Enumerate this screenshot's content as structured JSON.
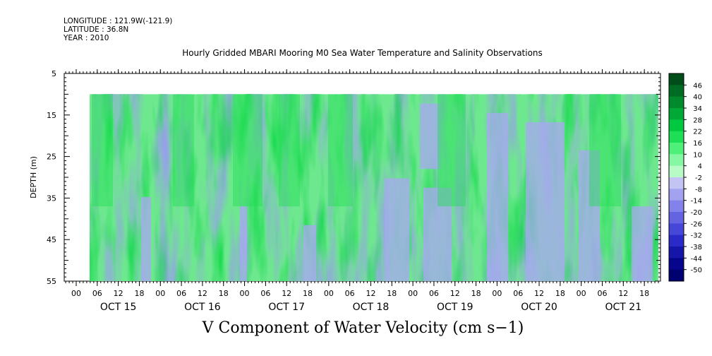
{
  "header": {
    "longitude": "LONGITUDE : 121.9W(-121.9)",
    "latitude": "LATITUDE : 36.8N",
    "year": "YEAR : 2010"
  },
  "chart_data": {
    "type": "heatmap",
    "title": "Hourly Gridded MBARI Mooring M0 Sea Water Temperature and Salinity Observations",
    "caption": "V Component of Water Velocity (cm s−1)",
    "ylabel": "DEPTH (m)",
    "ylim": [
      5,
      55
    ],
    "y_inverted": true,
    "y_ticks": [
      5,
      15,
      25,
      35,
      45,
      55
    ],
    "data_depth_range": [
      10,
      55
    ],
    "x_hour_ticks": [
      "00",
      "06",
      "12",
      "18",
      "00",
      "06",
      "12",
      "18",
      "00",
      "06",
      "12",
      "18",
      "00",
      "06",
      "12",
      "18",
      "00",
      "06",
      "12",
      "18",
      "00",
      "06",
      "12",
      "18",
      "00",
      "06",
      "12",
      "18"
    ],
    "x_day_labels": [
      "OCT 15",
      "OCT 16",
      "OCT 17",
      "OCT 18",
      "OCT 19",
      "OCT 20",
      "OCT 21"
    ],
    "colorbar": {
      "levels": [
        48,
        46,
        40,
        34,
        28,
        22,
        16,
        10,
        4,
        -2,
        -8,
        -14,
        -20,
        -26,
        -32,
        -38,
        -44,
        -50
      ],
      "labels": [
        "46",
        "40",
        "34",
        "28",
        "22",
        "16",
        "10",
        "4",
        "-2",
        "-8",
        "-14",
        "-20",
        "-26",
        "-32",
        "-38",
        "-44",
        "-50"
      ],
      "colors": [
        "#004d1a",
        "#006b23",
        "#008a2c",
        "#00a836",
        "#00c93f",
        "#1ede55",
        "#4ef07a",
        "#86f7a3",
        "#b8fbc6",
        "#c4c4f4",
        "#a2a2f0",
        "#8282ea",
        "#6464e2",
        "#4646d8",
        "#2a2ac8",
        "#1515aa",
        "#06068c",
        "#000070"
      ]
    },
    "description_values_cm_s": "mostly -8 to 28; green (northward) dominant Oct 15-17, blue (southward) bands after Oct 18"
  }
}
